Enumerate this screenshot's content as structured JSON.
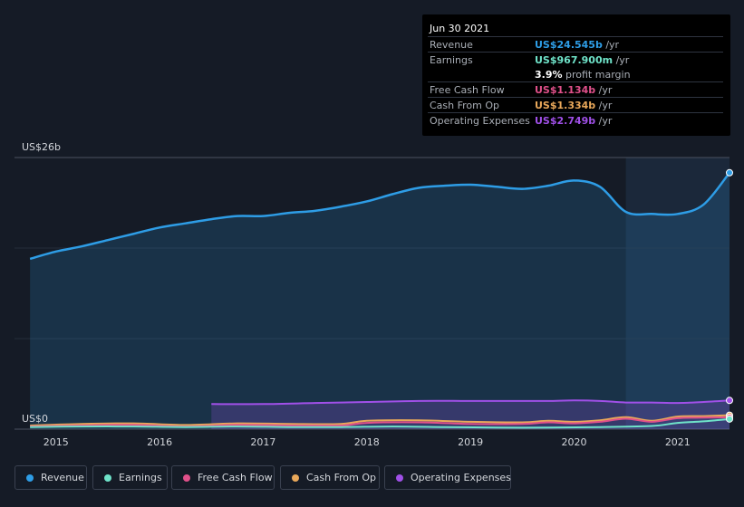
{
  "tooltip": {
    "date": "Jun 30 2021",
    "rows": [
      {
        "label": "Revenue",
        "value": "US$24.545b",
        "unit": " /yr",
        "color": "#2e9de6"
      },
      {
        "label": "Earnings",
        "value": "US$967.900m",
        "unit": " /yr",
        "color": "#6fe3c9"
      },
      {
        "label": "",
        "value": "3.9%",
        "unit": " profit margin",
        "color": "#ffffff"
      },
      {
        "label": "Free Cash Flow",
        "value": "US$1.134b",
        "unit": " /yr",
        "color": "#e0508a"
      },
      {
        "label": "Cash From Op",
        "value": "US$1.334b",
        "unit": " /yr",
        "color": "#e9a85a"
      },
      {
        "label": "Operating Expenses",
        "value": "US$2.749b",
        "unit": " /yr",
        "color": "#a050e8"
      }
    ]
  },
  "legend": [
    {
      "label": "Revenue",
      "color": "#2e9de6"
    },
    {
      "label": "Earnings",
      "color": "#6fe3c9"
    },
    {
      "label": "Free Cash Flow",
      "color": "#e0508a"
    },
    {
      "label": "Cash From Op",
      "color": "#e9a85a"
    },
    {
      "label": "Operating Expenses",
      "color": "#a050e8"
    }
  ],
  "chart_data": {
    "type": "area",
    "y_top_label": "US$26b",
    "y_bottom_label": "US$0",
    "ylim": [
      0,
      26
    ],
    "xlim": [
      2014.6,
      2021.5
    ],
    "x_ticks": [
      "2015",
      "2016",
      "2017",
      "2018",
      "2019",
      "2020",
      "2021"
    ],
    "highlight_from": 2020.5,
    "series": [
      {
        "name": "Revenue",
        "color": "#2e9de6",
        "fill": true,
        "points": [
          [
            2014.75,
            16.3
          ],
          [
            2015.0,
            17.0
          ],
          [
            2015.25,
            17.5
          ],
          [
            2015.5,
            18.1
          ],
          [
            2015.75,
            18.7
          ],
          [
            2016.0,
            19.3
          ],
          [
            2016.25,
            19.7
          ],
          [
            2016.5,
            20.1
          ],
          [
            2016.75,
            20.4
          ],
          [
            2017.0,
            20.4
          ],
          [
            2017.25,
            20.7
          ],
          [
            2017.5,
            20.9
          ],
          [
            2017.75,
            21.3
          ],
          [
            2018.0,
            21.8
          ],
          [
            2018.25,
            22.5
          ],
          [
            2018.5,
            23.1
          ],
          [
            2018.75,
            23.3
          ],
          [
            2019.0,
            23.4
          ],
          [
            2019.25,
            23.2
          ],
          [
            2019.5,
            23.0
          ],
          [
            2019.75,
            23.3
          ],
          [
            2020.0,
            23.8
          ],
          [
            2020.25,
            23.2
          ],
          [
            2020.5,
            20.8
          ],
          [
            2020.75,
            20.6
          ],
          [
            2021.0,
            20.6
          ],
          [
            2021.25,
            21.5
          ],
          [
            2021.5,
            24.545
          ]
        ]
      },
      {
        "name": "Operating Expenses",
        "color": "#a050e8",
        "fill": true,
        "points": [
          [
            2016.5,
            2.4
          ],
          [
            2017.0,
            2.4
          ],
          [
            2017.5,
            2.5
          ],
          [
            2018.0,
            2.6
          ],
          [
            2018.5,
            2.7
          ],
          [
            2019.0,
            2.7
          ],
          [
            2019.5,
            2.7
          ],
          [
            2019.75,
            2.7
          ],
          [
            2020.0,
            2.75
          ],
          [
            2020.25,
            2.7
          ],
          [
            2020.5,
            2.55
          ],
          [
            2020.75,
            2.55
          ],
          [
            2021.0,
            2.5
          ],
          [
            2021.25,
            2.6
          ],
          [
            2021.5,
            2.749
          ]
        ]
      },
      {
        "name": "Cash From Op",
        "color": "#e9a85a",
        "fill": false,
        "points": [
          [
            2014.75,
            0.35
          ],
          [
            2015.25,
            0.5
          ],
          [
            2015.75,
            0.55
          ],
          [
            2016.25,
            0.4
          ],
          [
            2016.75,
            0.55
          ],
          [
            2017.25,
            0.5
          ],
          [
            2017.75,
            0.5
          ],
          [
            2018.0,
            0.8
          ],
          [
            2018.5,
            0.85
          ],
          [
            2019.0,
            0.7
          ],
          [
            2019.5,
            0.65
          ],
          [
            2019.75,
            0.8
          ],
          [
            2020.0,
            0.7
          ],
          [
            2020.25,
            0.85
          ],
          [
            2020.5,
            1.15
          ],
          [
            2020.75,
            0.8
          ],
          [
            2021.0,
            1.2
          ],
          [
            2021.25,
            1.25
          ],
          [
            2021.5,
            1.334
          ]
        ]
      },
      {
        "name": "Free Cash Flow",
        "color": "#e0508a",
        "fill": false,
        "points": [
          [
            2014.75,
            0.25
          ],
          [
            2015.25,
            0.35
          ],
          [
            2015.75,
            0.4
          ],
          [
            2016.25,
            0.25
          ],
          [
            2016.75,
            0.4
          ],
          [
            2017.25,
            0.35
          ],
          [
            2017.75,
            0.35
          ],
          [
            2018.0,
            0.6
          ],
          [
            2018.5,
            0.65
          ],
          [
            2019.0,
            0.5
          ],
          [
            2019.5,
            0.5
          ],
          [
            2019.75,
            0.65
          ],
          [
            2020.0,
            0.55
          ],
          [
            2020.25,
            0.7
          ],
          [
            2020.5,
            1.0
          ],
          [
            2020.75,
            0.7
          ],
          [
            2021.0,
            1.05
          ],
          [
            2021.25,
            1.1
          ],
          [
            2021.5,
            1.134
          ]
        ]
      },
      {
        "name": "Earnings",
        "color": "#6fe3c9",
        "fill": false,
        "points": [
          [
            2014.75,
            0.2
          ],
          [
            2015.25,
            0.25
          ],
          [
            2015.75,
            0.25
          ],
          [
            2016.25,
            0.2
          ],
          [
            2016.75,
            0.25
          ],
          [
            2017.25,
            0.2
          ],
          [
            2017.75,
            0.2
          ],
          [
            2018.25,
            0.25
          ],
          [
            2018.75,
            0.2
          ],
          [
            2019.25,
            0.15
          ],
          [
            2019.75,
            0.15
          ],
          [
            2020.25,
            0.2
          ],
          [
            2020.75,
            0.3
          ],
          [
            2021.0,
            0.6
          ],
          [
            2021.25,
            0.75
          ],
          [
            2021.5,
            0.968
          ]
        ]
      }
    ]
  }
}
